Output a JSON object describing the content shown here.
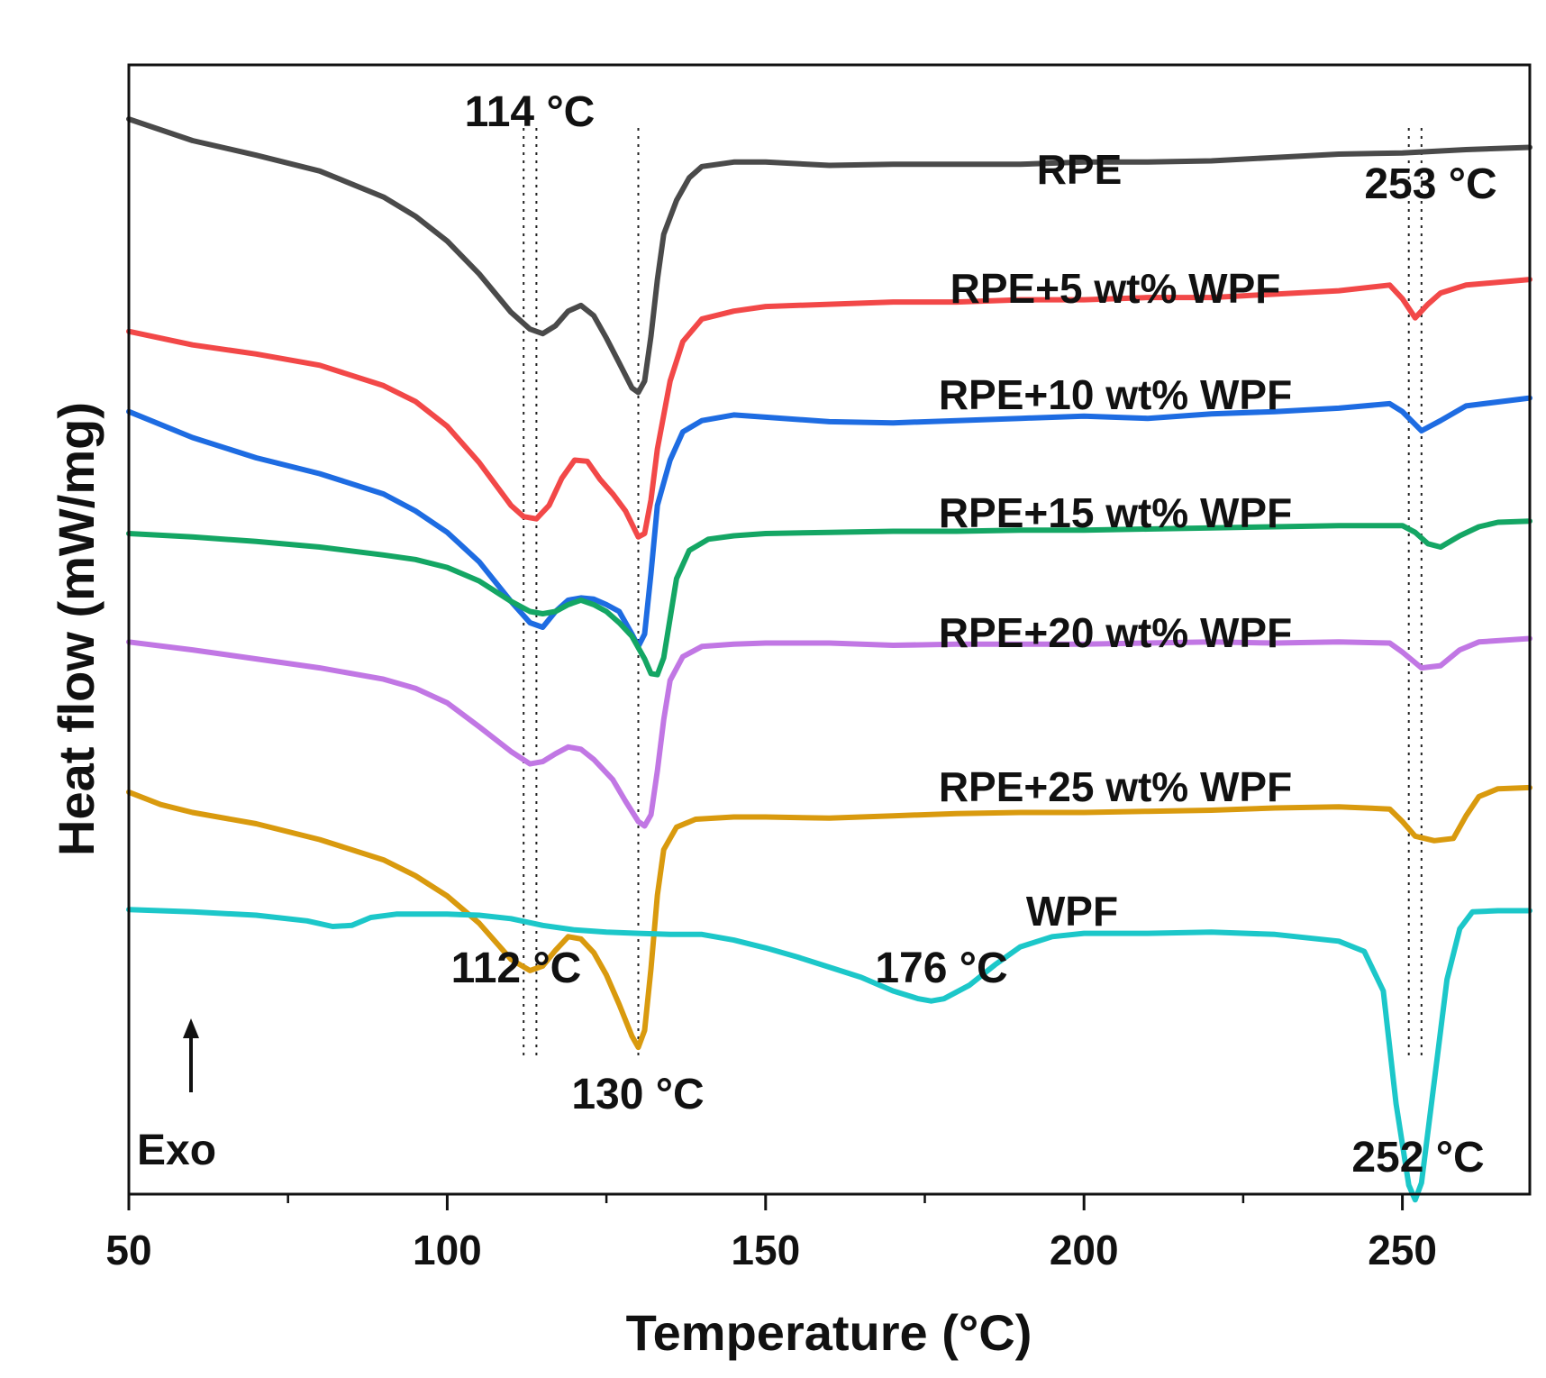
{
  "chart_data": {
    "type": "line",
    "xlabel": "Temperature (°C)",
    "ylabel": "Heat flow (mW/mg)",
    "xlim": [
      50,
      270
    ],
    "ylim": [
      0,
      100
    ],
    "x_ticks": [
      50,
      100,
      150,
      200,
      250
    ],
    "x_tick_labels": [
      "50",
      "100",
      "150",
      "200",
      "250"
    ],
    "x_minor_ticks": [
      75,
      125,
      175,
      225
    ],
    "exo_indicator": "Exo",
    "series": [
      {
        "name": "RPE",
        "color": "#4a4a4a",
        "points": [
          [
            50,
            95.2
          ],
          [
            60,
            93.3
          ],
          [
            70,
            92.0
          ],
          [
            80,
            90.6
          ],
          [
            90,
            88.3
          ],
          [
            95,
            86.6
          ],
          [
            100,
            84.4
          ],
          [
            105,
            81.5
          ],
          [
            110,
            78.1
          ],
          [
            113,
            76.6
          ],
          [
            115,
            76.2
          ],
          [
            117,
            76.9
          ],
          [
            119,
            78.2
          ],
          [
            121,
            78.7
          ],
          [
            123,
            77.8
          ],
          [
            125,
            75.8
          ],
          [
            127,
            73.6
          ],
          [
            129,
            71.4
          ],
          [
            130,
            71.0
          ],
          [
            131,
            72.0
          ],
          [
            132,
            76.0
          ],
          [
            133,
            81.0
          ],
          [
            134,
            85.0
          ],
          [
            136,
            88.0
          ],
          [
            138,
            90.0
          ],
          [
            140,
            91.0
          ],
          [
            145,
            91.4
          ],
          [
            150,
            91.4
          ],
          [
            160,
            91.1
          ],
          [
            170,
            91.2
          ],
          [
            180,
            91.2
          ],
          [
            190,
            91.2
          ],
          [
            200,
            91.4
          ],
          [
            210,
            91.4
          ],
          [
            220,
            91.5
          ],
          [
            230,
            91.8
          ],
          [
            240,
            92.1
          ],
          [
            250,
            92.2
          ],
          [
            260,
            92.5
          ],
          [
            270,
            92.7
          ]
        ]
      },
      {
        "name": "RPE+5 wt% WPF",
        "color": "#f24848",
        "points": [
          [
            50,
            76.4
          ],
          [
            60,
            75.2
          ],
          [
            70,
            74.4
          ],
          [
            80,
            73.4
          ],
          [
            90,
            71.6
          ],
          [
            95,
            70.2
          ],
          [
            100,
            68.0
          ],
          [
            105,
            64.8
          ],
          [
            110,
            61.0
          ],
          [
            112,
            60.0
          ],
          [
            114,
            59.8
          ],
          [
            116,
            61.0
          ],
          [
            118,
            63.4
          ],
          [
            120,
            65.0
          ],
          [
            122,
            64.9
          ],
          [
            124,
            63.3
          ],
          [
            126,
            62.0
          ],
          [
            128,
            60.5
          ],
          [
            130,
            58.2
          ],
          [
            131,
            58.5
          ],
          [
            132,
            61.5
          ],
          [
            133,
            66.0
          ],
          [
            135,
            72.0
          ],
          [
            137,
            75.5
          ],
          [
            140,
            77.5
          ],
          [
            145,
            78.2
          ],
          [
            150,
            78.6
          ],
          [
            160,
            78.8
          ],
          [
            170,
            79.0
          ],
          [
            180,
            79.0
          ],
          [
            190,
            79.2
          ],
          [
            200,
            79.2
          ],
          [
            210,
            79.4
          ],
          [
            220,
            79.4
          ],
          [
            230,
            79.7
          ],
          [
            240,
            80.0
          ],
          [
            248,
            80.5
          ],
          [
            250,
            79.3
          ],
          [
            252,
            77.6
          ],
          [
            254,
            78.8
          ],
          [
            256,
            79.8
          ],
          [
            260,
            80.5
          ],
          [
            270,
            81.0
          ]
        ]
      },
      {
        "name": "RPE+10 wt% WPF",
        "color": "#1e6ce2",
        "points": [
          [
            50,
            69.3
          ],
          [
            60,
            67.0
          ],
          [
            70,
            65.2
          ],
          [
            80,
            63.8
          ],
          [
            90,
            62.0
          ],
          [
            95,
            60.5
          ],
          [
            100,
            58.6
          ],
          [
            105,
            56.0
          ],
          [
            110,
            52.5
          ],
          [
            113,
            50.6
          ],
          [
            115,
            50.2
          ],
          [
            117,
            51.6
          ],
          [
            119,
            52.6
          ],
          [
            121,
            52.8
          ],
          [
            123,
            52.7
          ],
          [
            125,
            52.2
          ],
          [
            127,
            51.6
          ],
          [
            129,
            49.6
          ],
          [
            130,
            48.5
          ],
          [
            131,
            49.6
          ],
          [
            132,
            55.0
          ],
          [
            133,
            61.0
          ],
          [
            135,
            65.0
          ],
          [
            137,
            67.5
          ],
          [
            140,
            68.5
          ],
          [
            145,
            69.0
          ],
          [
            150,
            68.8
          ],
          [
            160,
            68.4
          ],
          [
            170,
            68.3
          ],
          [
            180,
            68.5
          ],
          [
            190,
            68.7
          ],
          [
            200,
            68.9
          ],
          [
            210,
            68.7
          ],
          [
            220,
            69.1
          ],
          [
            230,
            69.3
          ],
          [
            240,
            69.6
          ],
          [
            248,
            70.0
          ],
          [
            250,
            69.3
          ],
          [
            253,
            67.6
          ],
          [
            256,
            68.5
          ],
          [
            260,
            69.8
          ],
          [
            270,
            70.5
          ]
        ]
      },
      {
        "name": "RPE+15 wt% WPF",
        "color": "#14a664",
        "points": [
          [
            50,
            58.5
          ],
          [
            60,
            58.2
          ],
          [
            70,
            57.8
          ],
          [
            80,
            57.3
          ],
          [
            90,
            56.6
          ],
          [
            95,
            56.2
          ],
          [
            100,
            55.5
          ],
          [
            105,
            54.3
          ],
          [
            110,
            52.5
          ],
          [
            113,
            51.6
          ],
          [
            115,
            51.4
          ],
          [
            117,
            51.6
          ],
          [
            119,
            52.2
          ],
          [
            121,
            52.6
          ],
          [
            123,
            52.2
          ],
          [
            125,
            51.6
          ],
          [
            127,
            50.6
          ],
          [
            129,
            49.4
          ],
          [
            131,
            47.4
          ],
          [
            132,
            46.1
          ],
          [
            133,
            46.0
          ],
          [
            134,
            47.5
          ],
          [
            135,
            51.0
          ],
          [
            136,
            54.5
          ],
          [
            138,
            57.0
          ],
          [
            141,
            58.0
          ],
          [
            145,
            58.3
          ],
          [
            150,
            58.5
          ],
          [
            160,
            58.6
          ],
          [
            170,
            58.7
          ],
          [
            180,
            58.7
          ],
          [
            190,
            58.8
          ],
          [
            200,
            58.8
          ],
          [
            210,
            58.9
          ],
          [
            220,
            59.0
          ],
          [
            230,
            59.1
          ],
          [
            240,
            59.2
          ],
          [
            250,
            59.2
          ],
          [
            252,
            58.6
          ],
          [
            254,
            57.6
          ],
          [
            256,
            57.3
          ],
          [
            259,
            58.3
          ],
          [
            262,
            59.1
          ],
          [
            265,
            59.5
          ],
          [
            270,
            59.6
          ]
        ]
      },
      {
        "name": "RPE+20 wt% WPF",
        "color": "#c177e4",
        "points": [
          [
            50,
            48.9
          ],
          [
            60,
            48.2
          ],
          [
            70,
            47.4
          ],
          [
            80,
            46.6
          ],
          [
            90,
            45.6
          ],
          [
            95,
            44.8
          ],
          [
            100,
            43.5
          ],
          [
            105,
            41.4
          ],
          [
            110,
            39.2
          ],
          [
            113,
            38.1
          ],
          [
            115,
            38.3
          ],
          [
            117,
            39.0
          ],
          [
            119,
            39.6
          ],
          [
            121,
            39.4
          ],
          [
            123,
            38.5
          ],
          [
            126,
            36.7
          ],
          [
            128,
            34.8
          ],
          [
            130,
            33.0
          ],
          [
            131,
            32.6
          ],
          [
            132,
            33.6
          ],
          [
            133,
            37.5
          ],
          [
            134,
            42.0
          ],
          [
            135,
            45.5
          ],
          [
            137,
            47.6
          ],
          [
            140,
            48.5
          ],
          [
            145,
            48.7
          ],
          [
            150,
            48.8
          ],
          [
            160,
            48.8
          ],
          [
            170,
            48.6
          ],
          [
            180,
            48.7
          ],
          [
            190,
            48.7
          ],
          [
            200,
            48.7
          ],
          [
            210,
            48.8
          ],
          [
            220,
            48.9
          ],
          [
            230,
            48.8
          ],
          [
            240,
            48.9
          ],
          [
            248,
            48.8
          ],
          [
            250,
            48.0
          ],
          [
            253,
            46.6
          ],
          [
            256,
            46.8
          ],
          [
            259,
            48.2
          ],
          [
            262,
            48.9
          ],
          [
            270,
            49.2
          ]
        ]
      },
      {
        "name": "RPE+25 wt% WPF",
        "color": "#d99a0e",
        "points": [
          [
            50,
            35.6
          ],
          [
            55,
            34.5
          ],
          [
            60,
            33.8
          ],
          [
            70,
            32.8
          ],
          [
            80,
            31.4
          ],
          [
            90,
            29.6
          ],
          [
            95,
            28.2
          ],
          [
            100,
            26.4
          ],
          [
            105,
            24.0
          ],
          [
            110,
            20.8
          ],
          [
            113,
            19.8
          ],
          [
            115,
            20.2
          ],
          [
            117,
            21.6
          ],
          [
            119,
            22.8
          ],
          [
            121,
            22.6
          ],
          [
            123,
            21.4
          ],
          [
            125,
            19.4
          ],
          [
            127,
            16.8
          ],
          [
            129,
            14.0
          ],
          [
            130,
            13.0
          ],
          [
            131,
            14.5
          ],
          [
            132,
            20.0
          ],
          [
            133,
            26.5
          ],
          [
            134,
            30.5
          ],
          [
            136,
            32.5
          ],
          [
            139,
            33.2
          ],
          [
            145,
            33.4
          ],
          [
            150,
            33.4
          ],
          [
            160,
            33.3
          ],
          [
            170,
            33.5
          ],
          [
            180,
            33.7
          ],
          [
            190,
            33.8
          ],
          [
            200,
            33.8
          ],
          [
            210,
            33.9
          ],
          [
            220,
            34.0
          ],
          [
            230,
            34.2
          ],
          [
            240,
            34.3
          ],
          [
            248,
            34.1
          ],
          [
            250,
            33.0
          ],
          [
            252,
            31.7
          ],
          [
            255,
            31.3
          ],
          [
            258,
            31.5
          ],
          [
            260,
            33.5
          ],
          [
            262,
            35.2
          ],
          [
            265,
            35.9
          ],
          [
            270,
            36.0
          ]
        ]
      },
      {
        "name": "WPF",
        "color": "#1cc7c9",
        "points": [
          [
            50,
            25.2
          ],
          [
            60,
            25.0
          ],
          [
            70,
            24.7
          ],
          [
            78,
            24.2
          ],
          [
            82,
            23.7
          ],
          [
            85,
            23.8
          ],
          [
            88,
            24.5
          ],
          [
            92,
            24.8
          ],
          [
            100,
            24.8
          ],
          [
            105,
            24.7
          ],
          [
            110,
            24.4
          ],
          [
            115,
            23.8
          ],
          [
            120,
            23.4
          ],
          [
            125,
            23.2
          ],
          [
            130,
            23.1
          ],
          [
            135,
            23.0
          ],
          [
            140,
            23.0
          ],
          [
            145,
            22.5
          ],
          [
            150,
            21.8
          ],
          [
            155,
            21.0
          ],
          [
            160,
            20.1
          ],
          [
            165,
            19.2
          ],
          [
            170,
            18.0
          ],
          [
            174,
            17.3
          ],
          [
            176,
            17.1
          ],
          [
            178,
            17.3
          ],
          [
            182,
            18.5
          ],
          [
            186,
            20.3
          ],
          [
            190,
            21.9
          ],
          [
            195,
            22.8
          ],
          [
            200,
            23.1
          ],
          [
            210,
            23.1
          ],
          [
            220,
            23.2
          ],
          [
            230,
            23.0
          ],
          [
            240,
            22.4
          ],
          [
            244,
            21.5
          ],
          [
            247,
            18.0
          ],
          [
            249,
            8.0
          ],
          [
            251,
            0.8
          ],
          [
            252,
            -0.5
          ],
          [
            253,
            1.0
          ],
          [
            255,
            10.0
          ],
          [
            257,
            19.0
          ],
          [
            259,
            23.5
          ],
          [
            261,
            25.0
          ],
          [
            265,
            25.1
          ],
          [
            270,
            25.1
          ]
        ]
      }
    ],
    "series_labels": [
      "RPE",
      "RPE+5 wt% WPF",
      "RPE+10 wt% WPF",
      "RPE+15 wt% WPF",
      "RPE+20 wt% WPF",
      "RPE+25 wt% WPF",
      "WPF"
    ],
    "annotations": [
      {
        "text": "114 °C",
        "x": 114
      },
      {
        "text": "112 °C",
        "x": 112
      },
      {
        "text": "130 °C",
        "x": 130
      },
      {
        "text": "176 °C",
        "x": 176
      },
      {
        "text": "253 °C",
        "x": 253
      },
      {
        "text": "252 °C",
        "x": 252
      }
    ],
    "guide_lines_x": [
      112,
      114,
      130,
      251,
      253
    ]
  }
}
